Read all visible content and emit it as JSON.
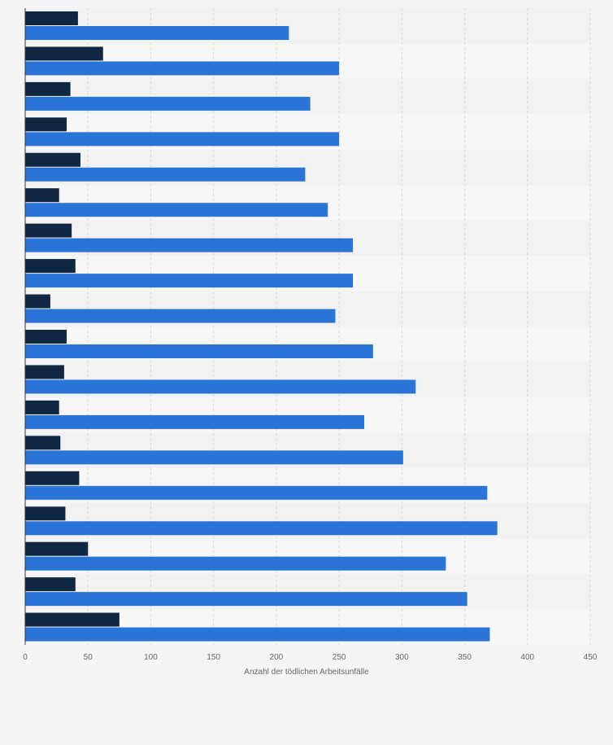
{
  "chart_data": {
    "type": "bar",
    "orientation": "horizontal",
    "xlabel": "Anzahl der tödlichen Arbeitsunfälle",
    "xlim": [
      0,
      450
    ],
    "x_ticks": [
      0,
      50,
      100,
      150,
      200,
      250,
      300,
      350,
      400,
      450
    ],
    "grid": true,
    "legend": "none",
    "series": [
      {
        "color": "#0f2740",
        "values": [
          42,
          62,
          36,
          33,
          44,
          27,
          37,
          40,
          20,
          33,
          31,
          27,
          28,
          43,
          32,
          50,
          40,
          75
        ]
      },
      {
        "color": "#2a74d8",
        "values": [
          210,
          250,
          227,
          250,
          223,
          241,
          261,
          261,
          247,
          277,
          311,
          270,
          301,
          368,
          376,
          335,
          352,
          370
        ]
      }
    ]
  }
}
